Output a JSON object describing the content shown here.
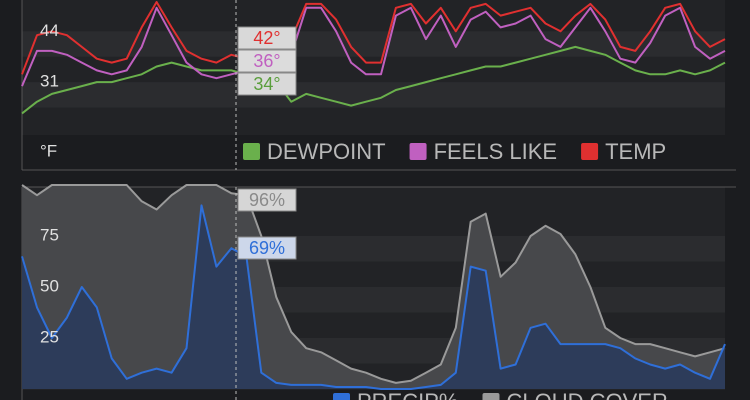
{
  "chart_data": [
    {
      "type": "line",
      "unit_label": "°F",
      "ylim": [
        18,
        52
      ],
      "yticks": [
        31,
        44
      ],
      "series": [
        {
          "name": "DEWPOINT",
          "color": "#6ab04c",
          "values": [
            23,
            26,
            28,
            29,
            30,
            31,
            31,
            32,
            33,
            35,
            36,
            35,
            34,
            34,
            34,
            33,
            33,
            31,
            26,
            28,
            27,
            26,
            25,
            26,
            27,
            29,
            30,
            31,
            32,
            33,
            34,
            35,
            35,
            36,
            37,
            38,
            39,
            40,
            39,
            38,
            36,
            34,
            33,
            33,
            34,
            33,
            34,
            36
          ]
        },
        {
          "name": "FEELS LIKE",
          "color": "#c060c0",
          "values": [
            30,
            39,
            39,
            38,
            36,
            34,
            33,
            34,
            40,
            50,
            43,
            36,
            33,
            32,
            33,
            34,
            35,
            31,
            38,
            50,
            50,
            44,
            36,
            33,
            33,
            48,
            50,
            42,
            48,
            40,
            47,
            49,
            45,
            46,
            48,
            42,
            40,
            45,
            50,
            44,
            37,
            36,
            41,
            48,
            50,
            40,
            37,
            39
          ]
        },
        {
          "name": "TEMP",
          "color": "#e03030",
          "values": [
            33,
            43,
            44,
            43,
            40,
            37,
            36,
            37,
            45,
            51.5,
            45,
            39,
            37,
            36,
            38,
            37,
            38,
            35,
            42,
            51,
            51,
            47,
            40,
            36,
            36,
            50,
            51,
            46,
            50,
            44,
            50,
            51,
            48,
            49,
            50,
            46,
            44,
            48,
            51,
            47,
            40,
            39,
            44,
            50,
            51,
            44,
            40,
            42
          ]
        }
      ],
      "tooltip": [
        {
          "label": "42°",
          "color": "#e03030",
          "bg": "#d9d9d9"
        },
        {
          "label": "36°",
          "color": "#c060c0",
          "bg": "#dcdcdc"
        },
        {
          "label": "34°",
          "color": "#5a9e3c",
          "bg": "#d9d9d9"
        }
      ]
    },
    {
      "type": "area",
      "ylim": [
        0,
        100
      ],
      "yticks": [
        25,
        50,
        75
      ],
      "series": [
        {
          "name": "PRECIP%",
          "color": "#2f6fd8",
          "fill": "#2a3b5c",
          "values": [
            65,
            40,
            25,
            35,
            50,
            40,
            15,
            5,
            8,
            10,
            8,
            20,
            90,
            60,
            69,
            65,
            8,
            3,
            2,
            2,
            2,
            1,
            1,
            1,
            0,
            0,
            0,
            1,
            2,
            8,
            60,
            58,
            10,
            12,
            30,
            32,
            22,
            22,
            22,
            22,
            20,
            15,
            12,
            10,
            12,
            8,
            5,
            22
          ]
        },
        {
          "name": "CLOUD COVER",
          "color": "#9a9a9a",
          "fill": "#47484b",
          "values": [
            100,
            95,
            100,
            100,
            100,
            100,
            100,
            100,
            92,
            88,
            95,
            100,
            100,
            100,
            96,
            95,
            75,
            45,
            28,
            20,
            18,
            14,
            10,
            8,
            5,
            3,
            4,
            8,
            12,
            30,
            82,
            86,
            55,
            62,
            75,
            80,
            76,
            66,
            50,
            30,
            25,
            22,
            22,
            20,
            18,
            16,
            18,
            20
          ]
        }
      ],
      "tooltip": [
        {
          "label": "96%",
          "color": "#8a8a8a",
          "bg": "#d6d6d6"
        },
        {
          "label": "69%",
          "color": "#2f6fd8",
          "bg": "#cdd7ea"
        }
      ]
    }
  ]
}
